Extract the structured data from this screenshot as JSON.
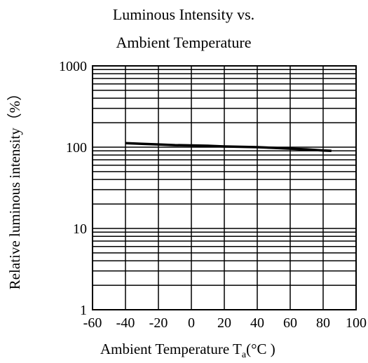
{
  "chart_data": {
    "type": "line",
    "title_line1": "Luminous Intensity vs.",
    "title_line2": "Ambient Temperature",
    "xlabel": "Ambient Temperature T",
    "xlabel_sub": "a",
    "xlabel_unit": "(°C )",
    "ylabel": "Relative luminous intensity（%）",
    "x_ticks": [
      "-60",
      "-40",
      "-20",
      "0",
      "20",
      "40",
      "60",
      "80",
      "100"
    ],
    "y_ticks": [
      "1",
      "10",
      "100",
      "1000"
    ],
    "xlim": [
      -60,
      100
    ],
    "ylim": [
      1,
      1000
    ],
    "yscale": "log",
    "grid": true,
    "series": [
      {
        "x": [
          -40,
          -30,
          -20,
          -10,
          0,
          10,
          20,
          30,
          40,
          50,
          60,
          70,
          80,
          85
        ],
        "y": [
          112,
          110,
          108,
          106,
          105,
          104,
          102,
          101,
          100,
          98,
          96,
          94,
          91,
          90
        ]
      }
    ]
  }
}
